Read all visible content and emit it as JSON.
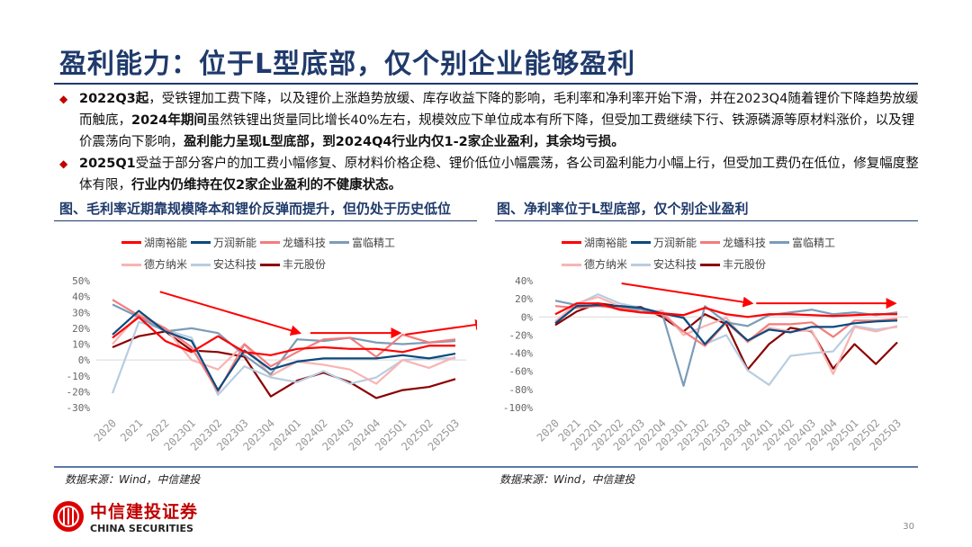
{
  "title": "盈利能力：位于L型底部，仅个别企业能够盈利",
  "bullets": [
    {
      "parts": [
        {
          "t": "2022Q3起",
          "b": true
        },
        {
          "t": "，受铁锂加工费下降，以及锂价上涨趋势放缓、库存收益下降的影响，毛利率和净利率开始下滑，并在2023Q4随着锂价下降趋势放缓而触底，",
          "b": false
        },
        {
          "t": "2024年期间",
          "b": true
        },
        {
          "t": "虽然铁锂出货量同比增长40%左右，规模效应下单位成本有所下降，但受加工费继续下行、铁源磷源等原材料涨价，以及锂价震荡向下影响，",
          "b": false
        },
        {
          "t": "盈利能力呈现L型底部，到2024Q4行业内仅1-2家企业盈利，其余均亏损。",
          "b": true
        }
      ]
    },
    {
      "parts": [
        {
          "t": "2025Q1",
          "b": true
        },
        {
          "t": "受益于部分客户的加工费小幅修复、原材料价格企稳、锂价低位小幅震荡，各公司盈利能力小幅上行，但受加工费仍在低位，修复幅度整体有限，",
          "b": false
        },
        {
          "t": "行业内仍维持在仅2家企业盈利的不健康状态。",
          "b": true
        }
      ]
    }
  ],
  "source": "数据来源：Wind，中信建投",
  "logo": {
    "cn": "中信建投证券",
    "en": "CHINA SECURITIES"
  },
  "page_number": "30",
  "chart_data": [
    {
      "type": "line",
      "title": "图、毛利率近期靠规模降本和锂价反弹而提升，但仍处于历史低位",
      "ylim": [
        -30,
        50
      ],
      "ystep": 10,
      "yticks": [
        "50%",
        "40%",
        "30%",
        "20%",
        "10%",
        "0%",
        "-10%",
        "-20%",
        "-30%"
      ],
      "categories": [
        "2020",
        "2021",
        "2022",
        "2023Q1",
        "2023Q2",
        "2023Q3",
        "2023Q4",
        "2024Q1",
        "2024Q2",
        "2024Q3",
        "2024Q4",
        "2025Q1",
        "2025Q2",
        "2025Q3"
      ],
      "series": [
        {
          "name": "湖南裕能",
          "color": "#ff0000",
          "values": [
            14,
            27,
            12,
            5,
            15,
            5,
            3,
            7,
            8,
            7,
            7,
            5,
            9,
            9
          ]
        },
        {
          "name": "万润新能",
          "color": "#0b4a7d",
          "values": [
            16,
            31,
            18,
            12,
            -19,
            6,
            -6,
            -1,
            1,
            1,
            1,
            3,
            1,
            4
          ]
        },
        {
          "name": "龙蟠科技",
          "color": "#f47c7c",
          "values": [
            38,
            28,
            20,
            8,
            -20,
            10,
            -4,
            5,
            13,
            14,
            2,
            16,
            11,
            13
          ]
        },
        {
          "name": "富临精工",
          "color": "#7c9cb8",
          "values": [
            35,
            27,
            18,
            20,
            17,
            3,
            -9,
            13,
            12,
            14,
            11,
            10,
            11,
            12
          ]
        },
        {
          "name": "德方纳米",
          "color": "#f8b4b4",
          "values": [
            10,
            29,
            20,
            0,
            -6,
            10,
            -10,
            -1,
            -3,
            -6,
            -15,
            0,
            -5,
            2
          ]
        },
        {
          "name": "安达科技",
          "color": "#b8cde0",
          "values": [
            -21,
            24,
            19,
            14,
            -22,
            -4,
            -11,
            -14,
            -7,
            -15,
            -11,
            0,
            1,
            1
          ]
        },
        {
          "name": "丰元股份",
          "color": "#8b0000",
          "values": [
            8,
            15,
            18,
            6,
            5,
            2,
            -23,
            -13,
            -8,
            -14,
            -24,
            -19,
            -17,
            -12
          ]
        }
      ],
      "arrows": [
        [
          [
            1.8,
            43
          ],
          [
            7.1,
            17
          ]
        ],
        [
          [
            7.5,
            17
          ],
          [
            10.9,
            17
          ]
        ],
        [
          [
            11.1,
            16
          ],
          [
            14.1,
            23
          ]
        ]
      ]
    },
    {
      "type": "line",
      "title": "图、净利率位于L型底部，仅个别企业盈利",
      "ylim": [
        -100,
        40
      ],
      "ystep": 20,
      "yticks": [
        "40%",
        "20%",
        "0%",
        "-20%",
        "-40%",
        "-60%",
        "-80%",
        "-100%"
      ],
      "categories": [
        "2020",
        "2021",
        "2022Q1",
        "2022Q2",
        "2022Q3",
        "2022Q4",
        "2023Q1",
        "2023Q2",
        "2023Q3",
        "2023Q4",
        "2024Q1",
        "2024Q2",
        "2024Q3",
        "2024Q4",
        "2025Q1",
        "2025Q2",
        "2025Q3"
      ],
      "series": [
        {
          "name": "湖南裕能",
          "color": "#ff0000",
          "values": [
            3,
            15,
            15,
            8,
            5,
            4,
            2,
            10,
            3,
            0,
            3,
            3,
            2,
            1,
            2,
            3,
            3
          ]
        },
        {
          "name": "万润新能",
          "color": "#0b4a7d",
          "values": [
            -7,
            12,
            13,
            12,
            10,
            4,
            -1,
            -30,
            -5,
            -26,
            -14,
            -17,
            -11,
            -11,
            -7,
            -5,
            -4
          ]
        },
        {
          "name": "龙蟠科技",
          "color": "#f47c7c",
          "values": [
            12,
            10,
            12,
            10,
            5,
            3,
            -16,
            -32,
            -6,
            -27,
            -8,
            -8,
            -6,
            -22,
            -4,
            -4,
            -2
          ]
        },
        {
          "name": "富临精工",
          "color": "#7c9cb8",
          "values": [
            18,
            13,
            12,
            10,
            8,
            4,
            -76,
            12,
            -6,
            -10,
            2,
            5,
            8,
            3,
            5,
            2,
            5
          ]
        },
        {
          "name": "德方纳米",
          "color": "#f8b4b4",
          "values": [
            -5,
            15,
            22,
            12,
            5,
            7,
            -20,
            -10,
            -1,
            -28,
            -12,
            -16,
            -15,
            -63,
            -11,
            -16,
            -10
          ]
        },
        {
          "name": "安达科技",
          "color": "#b8cde0",
          "values": [
            -5,
            14,
            25,
            15,
            10,
            5,
            0,
            -30,
            -20,
            -59,
            -75,
            -43,
            -40,
            -38,
            -10,
            -14,
            -11
          ]
        },
        {
          "name": "丰元股份",
          "color": "#8b0000",
          "values": [
            -9,
            6,
            15,
            12,
            11,
            0,
            -16,
            3,
            -8,
            -58,
            -30,
            -12,
            -16,
            -57,
            -30,
            -52,
            -28
          ]
        }
      ],
      "arrows": [
        [
          [
            3.1,
            37
          ],
          [
            9.2,
            15
          ]
        ],
        [
          [
            9.4,
            15
          ],
          [
            15.9,
            15
          ]
        ]
      ]
    }
  ]
}
